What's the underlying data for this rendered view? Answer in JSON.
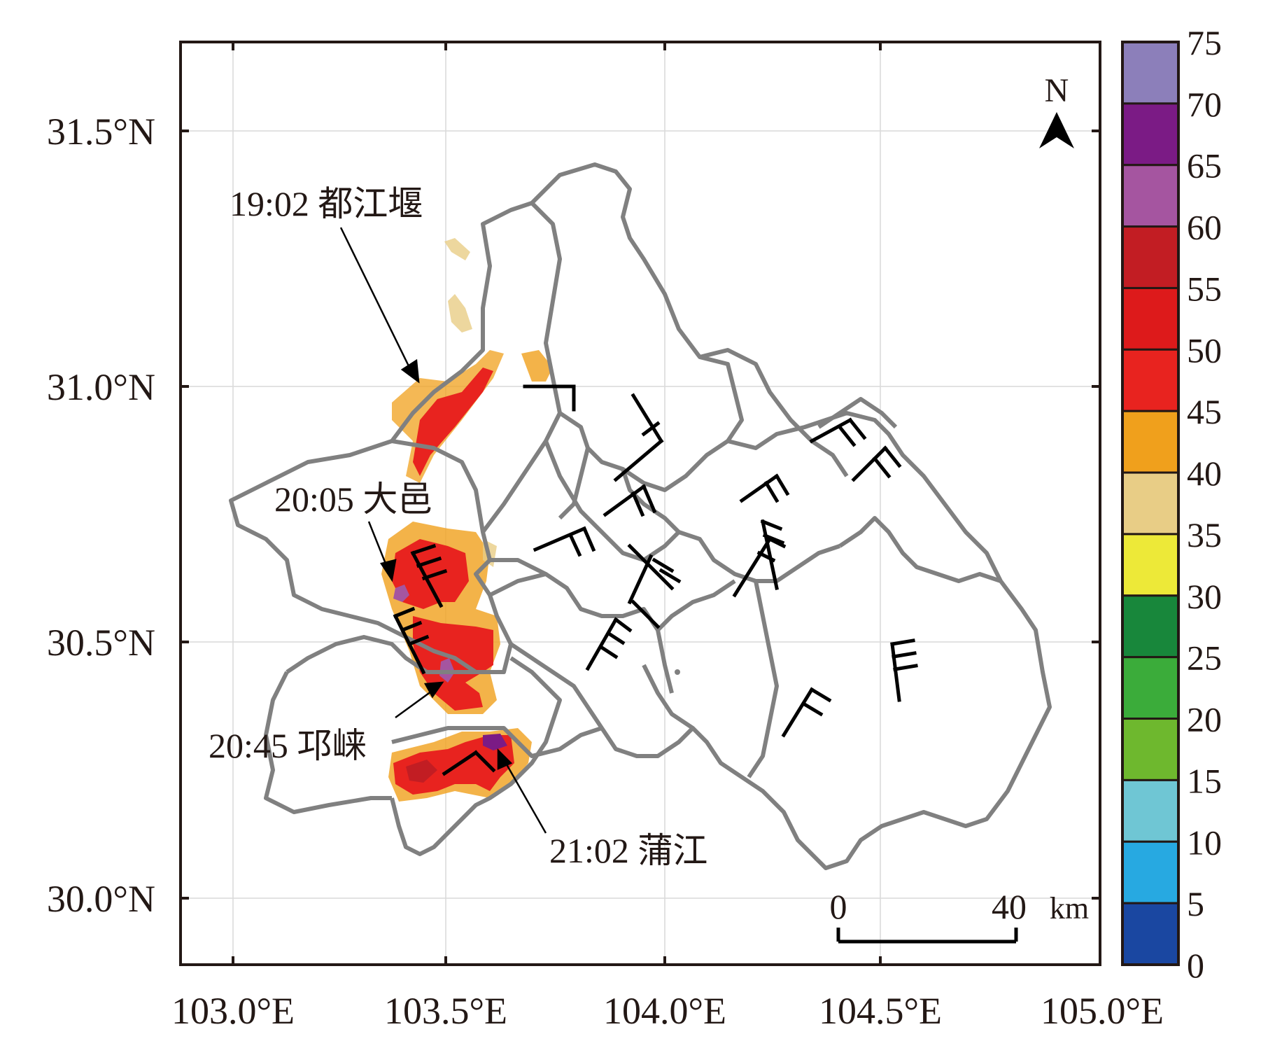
{
  "map": {
    "x_ticks": [
      "103.0°E",
      "103.5°E",
      "104.0°E",
      "104.5°E",
      "105.0°E"
    ],
    "y_ticks": [
      "31.5°N",
      "31.0°N",
      "30.5°N",
      "30.0°N"
    ],
    "north_label": "N",
    "annotations": {
      "dujiangyan": "19:02 都江堰",
      "dayi": "20:05 大邑",
      "qionglai": "20:45 邛崃",
      "pujiang": "21:02 蒲江"
    },
    "scale_bar": {
      "start_label": "0",
      "end_label": "40",
      "unit": "km"
    },
    "colorbar": {
      "labels": [
        "75",
        "70",
        "65",
        "60",
        "55",
        "50",
        "45",
        "40",
        "35",
        "30",
        "25",
        "20",
        "15",
        "10",
        "5",
        "0"
      ],
      "colors": [
        "#8c7fba",
        "#7b1b85",
        "#a555a0",
        "#c21d23",
        "#dd1a1b",
        "#e8231f",
        "#f0a01c",
        "#e8cd86",
        "#ede938",
        "#18873b",
        "#3bac3a",
        "#6eb82e",
        "#6fc6d4",
        "#27a9e1",
        "#1a47a1"
      ]
    }
  }
}
